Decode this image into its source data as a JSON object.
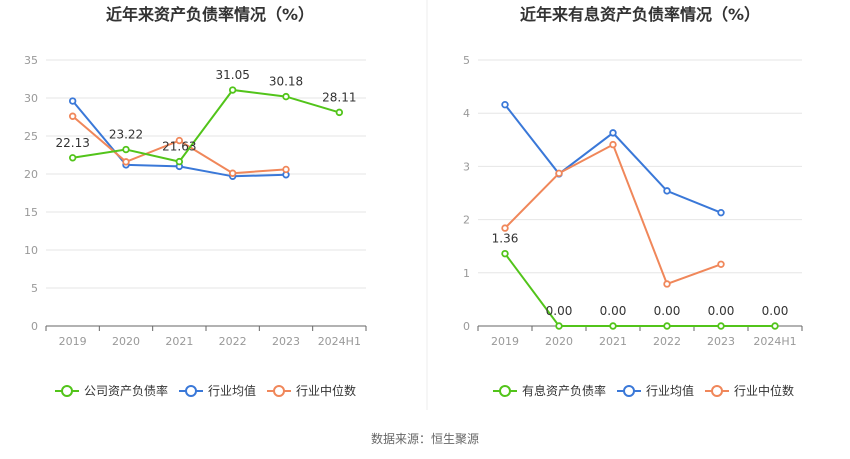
{
  "source_text": "数据来源：恒生聚源",
  "chart_data": [
    {
      "type": "line",
      "title": "近年来资产负债率情况（%）",
      "categories": [
        "2019",
        "2020",
        "2021",
        "2022",
        "2023",
        "2024H1"
      ],
      "ylim": [
        0,
        35
      ],
      "yticks": [
        "0",
        "5",
        "10",
        "15",
        "20",
        "25",
        "30",
        "35"
      ],
      "grid": true,
      "legend_position": "bottom",
      "series": [
        {
          "name": "公司资产负债率",
          "color": "#52c41a",
          "values": [
            22.13,
            23.22,
            21.63,
            31.05,
            30.18,
            28.11
          ],
          "labels": [
            "22.13",
            "23.22",
            "21.63",
            "31.05",
            "30.18",
            "28.11"
          ]
        },
        {
          "name": "行业均值",
          "color": "#3a78d8",
          "values": [
            29.6,
            21.2,
            21.0,
            19.7,
            19.9,
            null
          ],
          "labels": []
        },
        {
          "name": "行业中位数",
          "color": "#f0875a",
          "values": [
            27.6,
            21.6,
            24.4,
            20.1,
            20.6,
            null
          ],
          "labels": []
        }
      ]
    },
    {
      "type": "line",
      "title": "近年来有息资产负债率情况（%）",
      "categories": [
        "2019",
        "2020",
        "2021",
        "2022",
        "2023",
        "2024H1"
      ],
      "ylim": [
        0,
        5
      ],
      "yticks": [
        "0",
        "1",
        "2",
        "3",
        "4",
        "5"
      ],
      "grid": true,
      "legend_position": "bottom",
      "series": [
        {
          "name": "有息资产负债率",
          "color": "#52c41a",
          "values": [
            1.36,
            0.0,
            0.0,
            0.0,
            0.0,
            0.0
          ],
          "labels": [
            "1.36",
            "0.00",
            "0.00",
            "0.00",
            "0.00",
            "0.00"
          ]
        },
        {
          "name": "行业均值",
          "color": "#3a78d8",
          "values": [
            4.16,
            2.86,
            3.63,
            2.54,
            2.13,
            null
          ],
          "labels": []
        },
        {
          "name": "行业中位数",
          "color": "#f0875a",
          "values": [
            1.84,
            2.87,
            3.41,
            0.79,
            1.16,
            null
          ],
          "labels": []
        }
      ]
    }
  ]
}
